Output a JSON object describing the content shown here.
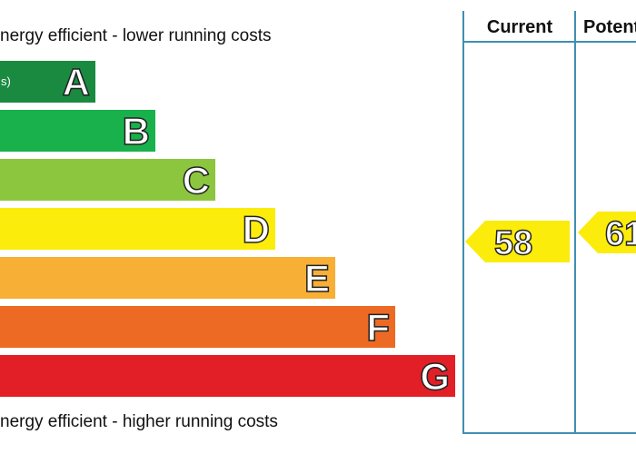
{
  "captions": {
    "top": "nergy efficient - lower running costs",
    "bottom": "nergy efficient - higher running costs"
  },
  "bands": [
    {
      "letter": "A",
      "note": "s)",
      "color": "#1a8a41"
    },
    {
      "letter": "B",
      "note": "",
      "color": "#19b14b"
    },
    {
      "letter": "C",
      "note": "",
      "color": "#8cc63f"
    },
    {
      "letter": "D",
      "note": "",
      "color": "#fbec0b"
    },
    {
      "letter": "E",
      "note": "",
      "color": "#f7af35"
    },
    {
      "letter": "F",
      "note": "",
      "color": "#ed6a25"
    },
    {
      "letter": "G",
      "note": "",
      "color": "#e21f26"
    }
  ],
  "columns": {
    "current": "Current",
    "potential": "Potent"
  },
  "ratings": {
    "current": {
      "value": "58",
      "band": "D",
      "color": "#fbec0b"
    },
    "potential": {
      "value": "61",
      "band": "D",
      "color": "#fbec0b"
    }
  }
}
